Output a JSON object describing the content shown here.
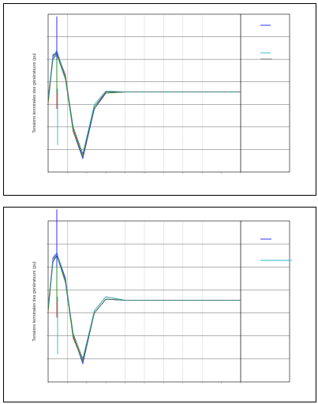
{
  "chart_data": [
    {
      "type": "line",
      "title": "",
      "xlabel": "",
      "ylabel": "Tensions terminales des générateurs (pu)",
      "xlim": [
        0,
        10
      ],
      "ylim": [
        0.6,
        1.3
      ],
      "grid": true,
      "legend_position": "top-right",
      "series": [
        {
          "color": "#1a1aff",
          "x": [
            0,
            0.25,
            0.45,
            0.9,
            1.3,
            1.8,
            2.4,
            3,
            4,
            6,
            8,
            10
          ],
          "y": [
            0.92,
            1.12,
            1.13,
            1.02,
            0.78,
            0.66,
            0.88,
            0.95,
            0.955,
            0.955,
            0.955,
            0.955
          ]
        },
        {
          "color": "#cc2a2a",
          "x": [
            0,
            0.25,
            0.45,
            0.9,
            1.3,
            1.8,
            2.4,
            3,
            4,
            6,
            8,
            10
          ],
          "y": [
            0.9,
            1.11,
            1.13,
            1.03,
            0.79,
            0.67,
            0.89,
            0.955,
            0.955,
            0.955,
            0.955,
            0.955
          ]
        },
        {
          "color": "#2a9a2a",
          "x": [
            0,
            0.25,
            0.45,
            0.9,
            1.3,
            1.8,
            2.4,
            3,
            4,
            6,
            8,
            10
          ],
          "y": [
            0.91,
            1.1,
            1.12,
            1.01,
            0.78,
            0.67,
            0.89,
            0.95,
            0.955,
            0.955,
            0.955,
            0.955
          ]
        },
        {
          "color": "#22b8c8",
          "x": [
            0,
            0.25,
            0.45,
            0.9,
            1.3,
            1.8,
            2.4,
            3,
            4,
            6,
            8,
            10
          ],
          "y": [
            0.93,
            1.11,
            1.14,
            1.02,
            0.8,
            0.68,
            0.9,
            0.96,
            0.955,
            0.955,
            0.955,
            0.955
          ]
        },
        {
          "color": "#555555",
          "x": [
            0,
            0.25,
            0.45,
            0.9,
            1.3,
            1.8,
            2.4,
            3,
            4,
            6,
            8,
            10
          ],
          "y": [
            0.92,
            1.1,
            1.13,
            1.02,
            0.8,
            0.68,
            0.88,
            0.955,
            0.955,
            0.955,
            0.955,
            0.955
          ]
        }
      ]
    },
    {
      "type": "line",
      "title": "",
      "xlabel": "",
      "ylabel": "Tensions terminales des générateurs (pu)",
      "xlim": [
        0,
        10
      ],
      "ylim": [
        0.6,
        1.3
      ],
      "grid": true,
      "legend_position": "top-right",
      "series": [
        {
          "color": "#1a1aff",
          "x": [
            0,
            0.25,
            0.45,
            0.9,
            1.3,
            1.8,
            2.4,
            3,
            4,
            6,
            8,
            10
          ],
          "y": [
            0.92,
            1.14,
            1.16,
            1.05,
            0.8,
            0.68,
            0.9,
            0.96,
            0.955,
            0.955,
            0.955,
            0.955
          ]
        },
        {
          "color": "#cc2a2a",
          "x": [
            0,
            0.25,
            0.45,
            0.9,
            1.3,
            1.8,
            2.4,
            3,
            4,
            6,
            8,
            10
          ],
          "y": [
            0.9,
            1.13,
            1.15,
            1.04,
            0.8,
            0.69,
            0.91,
            0.97,
            0.955,
            0.955,
            0.955,
            0.955
          ]
        },
        {
          "color": "#2a9a2a",
          "x": [
            0,
            0.25,
            0.45,
            0.9,
            1.3,
            1.8,
            2.4,
            3,
            4,
            6,
            8,
            10
          ],
          "y": [
            0.91,
            1.12,
            1.15,
            1.03,
            0.79,
            0.69,
            0.9,
            0.96,
            0.955,
            0.955,
            0.955,
            0.955
          ]
        },
        {
          "color": "#22b8c8",
          "x": [
            0,
            0.25,
            0.45,
            0.9,
            1.3,
            1.8,
            2.4,
            3,
            4,
            6,
            8,
            10
          ],
          "y": [
            0.93,
            1.13,
            1.16,
            1.04,
            0.81,
            0.7,
            0.91,
            0.97,
            0.955,
            0.955,
            0.955,
            0.955
          ]
        },
        {
          "color": "#555555",
          "x": [
            0,
            0.25,
            0.45,
            0.9,
            1.3,
            1.8,
            2.4,
            3,
            4,
            6,
            8,
            10
          ],
          "y": [
            0.92,
            1.12,
            1.15,
            1.04,
            0.81,
            0.7,
            0.9,
            0.96,
            0.955,
            0.955,
            0.955,
            0.955
          ]
        }
      ]
    }
  ]
}
